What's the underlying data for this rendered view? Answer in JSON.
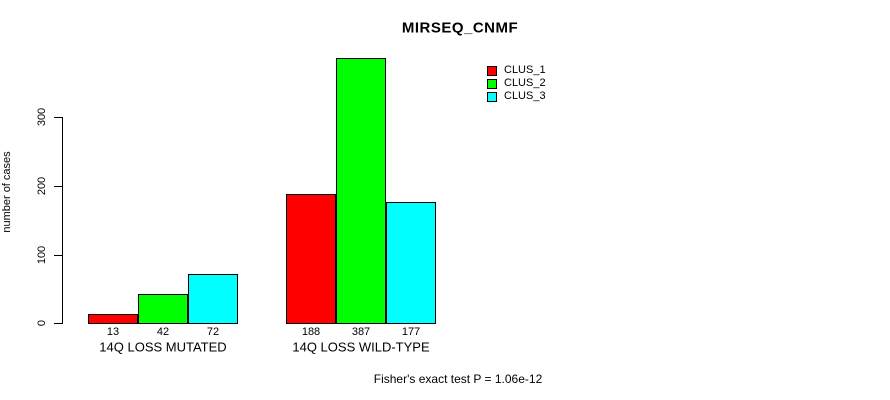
{
  "title": "MIRSEQ_CNMF",
  "footnote": "Fisher's exact test P = 1.06e-12",
  "colors": {
    "background": "#ffffff",
    "axis": "#000000",
    "bar_border": "#000000",
    "text": "#000000"
  },
  "legend": {
    "position": "top-right",
    "entries": [
      {
        "label": "CLUS_1",
        "color": "#ff0000"
      },
      {
        "label": "CLUS_2",
        "color": "#00ff00"
      },
      {
        "label": "CLUS_3",
        "color": "#00ffff"
      }
    ]
  },
  "chart_data": {
    "type": "bar",
    "title": "MIRSEQ_CNMF",
    "categories": [
      "14Q LOSS MUTATED",
      "14Q LOSS WILD-TYPE"
    ],
    "series": [
      {
        "name": "CLUS_1",
        "color": "#ff0000",
        "values": [
          13,
          188
        ]
      },
      {
        "name": "CLUS_2",
        "color": "#00ff00",
        "values": [
          42,
          387
        ]
      },
      {
        "name": "CLUS_3",
        "color": "#00ffff",
        "values": [
          72,
          177
        ]
      }
    ],
    "bar_value_labels": [
      [
        13,
        42,
        72
      ],
      [
        188,
        387,
        177
      ]
    ],
    "xlabel": "",
    "ylabel": "number of cases",
    "yticks": [
      0,
      100,
      200,
      300
    ],
    "ylim": [
      0,
      400
    ],
    "grid": false,
    "legend_position": "top-right",
    "annotation": "Fisher's exact test P = 1.06e-12"
  }
}
